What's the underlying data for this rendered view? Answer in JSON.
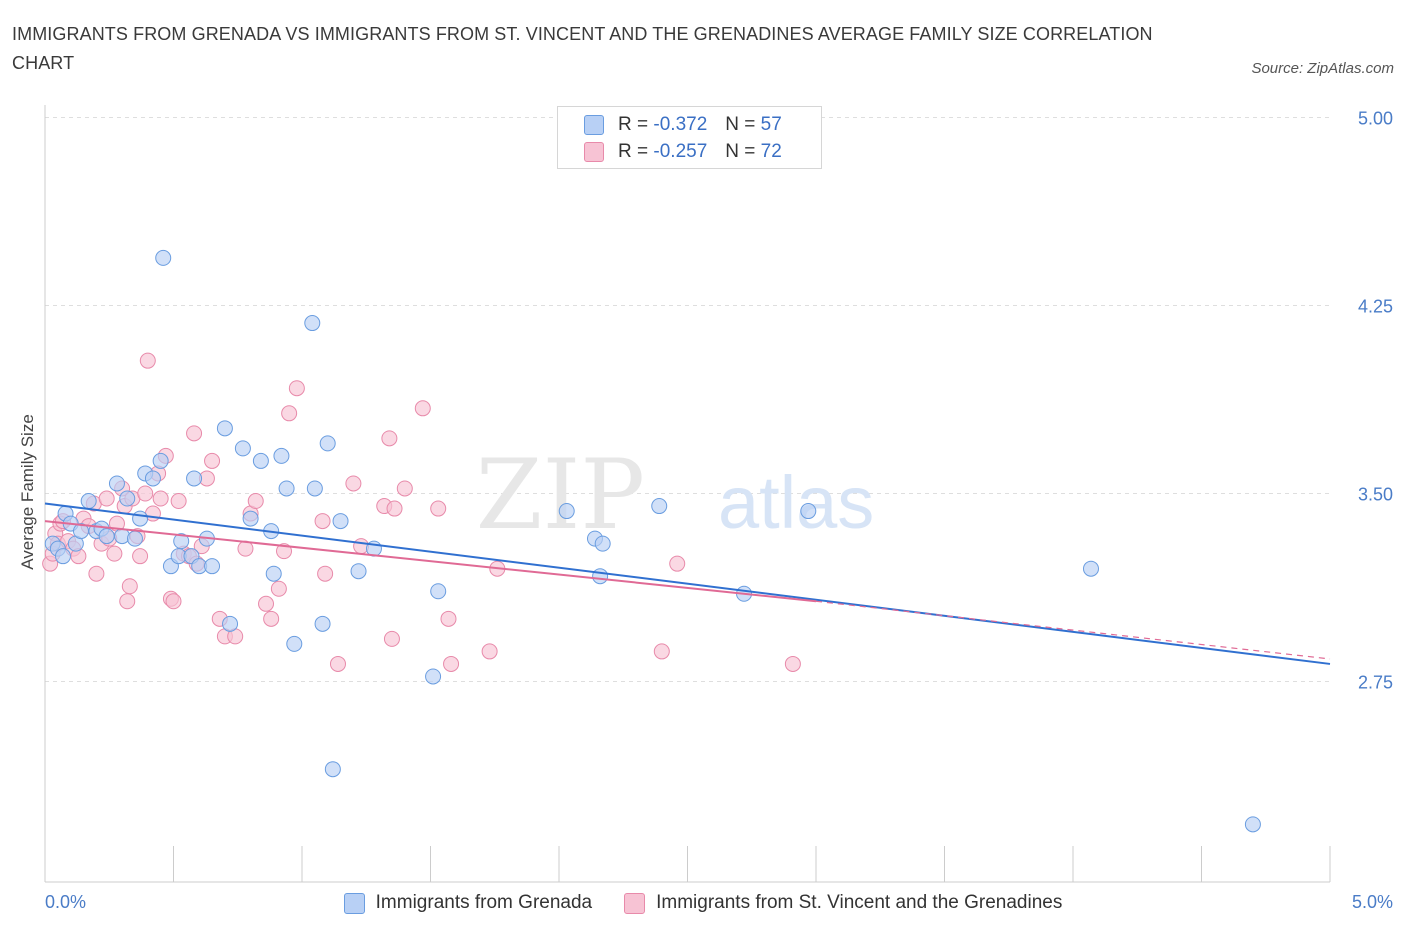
{
  "header": {
    "title": "IMMIGRANTS FROM GRENADA VS IMMIGRANTS FROM ST. VINCENT AND THE GRENADINES AVERAGE FAMILY SIZE CORRELATION CHART",
    "source": "Source: ZipAtlas.com"
  },
  "watermark": {
    "zip": "ZIP",
    "atlas": "atlas"
  },
  "stats_legend": {
    "r_label": "R =",
    "n_label": "N =",
    "rows": [
      {
        "r": "-0.372",
        "n": "57"
      },
      {
        "r": "-0.257",
        "n": "72"
      }
    ]
  },
  "colors": {
    "grenada_fill": "#b8d0f5",
    "grenada_stroke": "#6a9de0",
    "grenada_line": "#3070d0",
    "stvincent_fill": "#f7c3d4",
    "stvincent_stroke": "#e88aaa",
    "stvincent_line": "#e06a95",
    "tick_text": "#4a7cc7",
    "grid": "#dedede"
  },
  "chart_data": {
    "type": "scatter",
    "title": "IMMIGRANTS FROM GRENADA VS IMMIGRANTS FROM ST. VINCENT AND THE GRENADINES AVERAGE FAMILY SIZE CORRELATION CHART",
    "xlabel": "",
    "ylabel": "Average Family Size",
    "xlim": [
      0,
      5
    ],
    "ylim": [
      1.95,
      5.05
    ],
    "x_tick_labels": [
      "0.0%",
      "5.0%"
    ],
    "x_tick_values": [
      0,
      5
    ],
    "y_ticks": [
      2.75,
      3.5,
      4.25,
      5.0
    ],
    "y_tick_labels": [
      "2.75",
      "3.50",
      "4.25",
      "5.00"
    ],
    "grid": true,
    "legend_placement": "bottom-center",
    "series": [
      {
        "name": "Immigrants from Grenada",
        "r": -0.372,
        "n": 57,
        "trend": {
          "x0": 0.0,
          "y0": 3.46,
          "x1": 5.0,
          "y1": 2.82
        },
        "points": [
          [
            0.03,
            3.3
          ],
          [
            0.05,
            3.28
          ],
          [
            0.07,
            3.25
          ],
          [
            0.08,
            3.42
          ],
          [
            0.1,
            3.38
          ],
          [
            0.12,
            3.3
          ],
          [
            0.14,
            3.35
          ],
          [
            0.17,
            3.47
          ],
          [
            0.2,
            3.35
          ],
          [
            0.22,
            3.36
          ],
          [
            0.24,
            3.33
          ],
          [
            0.28,
            3.54
          ],
          [
            0.3,
            3.33
          ],
          [
            0.32,
            3.48
          ],
          [
            0.35,
            3.32
          ],
          [
            0.37,
            3.4
          ],
          [
            0.39,
            3.58
          ],
          [
            0.42,
            3.56
          ],
          [
            0.45,
            3.63
          ],
          [
            0.46,
            4.44
          ],
          [
            0.49,
            3.21
          ],
          [
            0.52,
            3.25
          ],
          [
            0.53,
            3.31
          ],
          [
            0.57,
            3.25
          ],
          [
            0.58,
            3.56
          ],
          [
            0.6,
            3.21
          ],
          [
            0.63,
            3.32
          ],
          [
            0.65,
            3.21
          ],
          [
            0.7,
            3.76
          ],
          [
            0.72,
            2.98
          ],
          [
            0.77,
            3.68
          ],
          [
            0.8,
            3.4
          ],
          [
            0.84,
            3.63
          ],
          [
            0.88,
            3.35
          ],
          [
            0.89,
            3.18
          ],
          [
            0.92,
            3.65
          ],
          [
            0.94,
            3.52
          ],
          [
            0.97,
            2.9
          ],
          [
            1.04,
            4.18
          ],
          [
            1.05,
            3.52
          ],
          [
            1.08,
            2.98
          ],
          [
            1.1,
            3.7
          ],
          [
            1.12,
            2.4
          ],
          [
            1.15,
            3.39
          ],
          [
            1.22,
            3.19
          ],
          [
            1.28,
            3.28
          ],
          [
            1.53,
            3.11
          ],
          [
            1.51,
            2.77
          ],
          [
            2.03,
            3.43
          ],
          [
            2.14,
            3.32
          ],
          [
            2.17,
            3.3
          ],
          [
            2.16,
            3.17
          ],
          [
            2.39,
            3.45
          ],
          [
            2.72,
            3.1
          ],
          [
            2.97,
            3.43
          ],
          [
            4.07,
            3.2
          ],
          [
            4.7,
            2.18
          ]
        ]
      },
      {
        "name": "Immigrants from St. Vincent and the Grenadines",
        "r": -0.257,
        "n": 72,
        "trend": {
          "x0": 0.0,
          "y0": 3.39,
          "x1": 3.0,
          "y1": 3.07
        },
        "trend_dashed": {
          "x0": 3.0,
          "y0": 3.07,
          "x1": 5.0,
          "y1": 2.84
        },
        "points": [
          [
            0.02,
            3.22
          ],
          [
            0.03,
            3.26
          ],
          [
            0.04,
            3.34
          ],
          [
            0.05,
            3.3
          ],
          [
            0.06,
            3.38
          ],
          [
            0.07,
            3.39
          ],
          [
            0.09,
            3.31
          ],
          [
            0.11,
            3.28
          ],
          [
            0.13,
            3.25
          ],
          [
            0.15,
            3.4
          ],
          [
            0.17,
            3.37
          ],
          [
            0.19,
            3.46
          ],
          [
            0.2,
            3.18
          ],
          [
            0.22,
            3.3
          ],
          [
            0.24,
            3.48
          ],
          [
            0.25,
            3.32
          ],
          [
            0.27,
            3.26
          ],
          [
            0.28,
            3.38
          ],
          [
            0.3,
            3.52
          ],
          [
            0.31,
            3.45
          ],
          [
            0.32,
            3.07
          ],
          [
            0.33,
            3.13
          ],
          [
            0.34,
            3.48
          ],
          [
            0.36,
            3.33
          ],
          [
            0.37,
            3.25
          ],
          [
            0.39,
            3.5
          ],
          [
            0.42,
            3.42
          ],
          [
            0.44,
            3.58
          ],
          [
            0.45,
            3.48
          ],
          [
            0.47,
            3.65
          ],
          [
            0.49,
            3.08
          ],
          [
            0.5,
            3.07
          ],
          [
            0.52,
            3.47
          ],
          [
            0.54,
            3.26
          ],
          [
            0.56,
            3.25
          ],
          [
            0.58,
            3.74
          ],
          [
            0.59,
            3.22
          ],
          [
            0.61,
            3.29
          ],
          [
            0.63,
            3.56
          ],
          [
            0.65,
            3.63
          ],
          [
            0.68,
            3.0
          ],
          [
            0.7,
            2.93
          ],
          [
            0.74,
            2.93
          ],
          [
            0.78,
            3.28
          ],
          [
            0.8,
            3.42
          ],
          [
            0.82,
            3.47
          ],
          [
            0.86,
            3.06
          ],
          [
            0.88,
            3.0
          ],
          [
            0.91,
            3.12
          ],
          [
            0.93,
            3.27
          ],
          [
            0.95,
            3.82
          ],
          [
            0.98,
            3.92
          ],
          [
            1.08,
            3.39
          ],
          [
            1.09,
            3.18
          ],
          [
            1.14,
            2.82
          ],
          [
            1.2,
            3.54
          ],
          [
            1.23,
            3.29
          ],
          [
            1.32,
            3.45
          ],
          [
            1.34,
            3.72
          ],
          [
            1.36,
            3.44
          ],
          [
            1.35,
            2.92
          ],
          [
            1.4,
            3.52
          ],
          [
            1.47,
            3.84
          ],
          [
            1.53,
            3.44
          ],
          [
            1.57,
            3.0
          ],
          [
            1.58,
            2.82
          ],
          [
            1.73,
            2.87
          ],
          [
            1.76,
            3.2
          ],
          [
            2.4,
            2.87
          ],
          [
            2.46,
            3.22
          ],
          [
            2.91,
            2.82
          ],
          [
            0.4,
            4.03
          ]
        ]
      }
    ]
  },
  "bottom_legend": [
    {
      "label": "Immigrants from Grenada"
    },
    {
      "label": "Immigrants from St. Vincent and the Grenadines"
    }
  ]
}
